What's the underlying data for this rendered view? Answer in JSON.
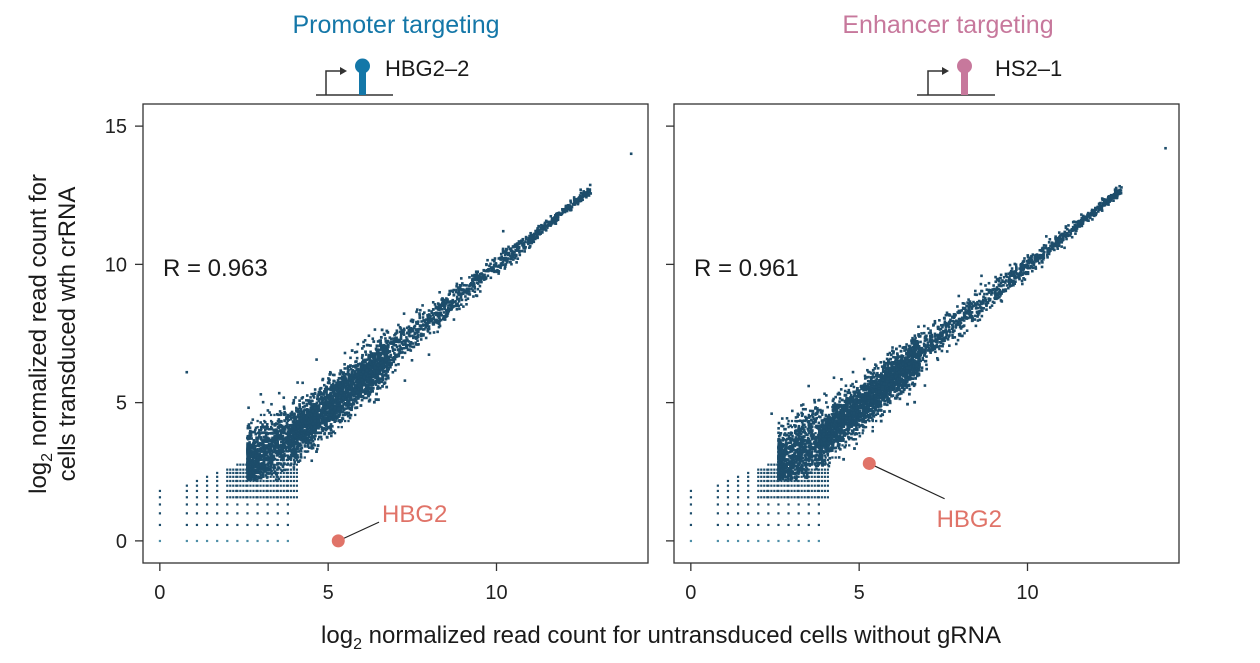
{
  "figure": {
    "x_axis_title_prefix": "log",
    "x_axis_title_sub": "2",
    "x_axis_title_rest": " normalized read count for untransduced cells without gRNA",
    "y_axis_title_line1_prefix": "log",
    "y_axis_title_line1_sub": "2",
    "y_axis_title_line1_rest": " normalized read count for",
    "y_axis_title_line2": "cells transduced wth crRNA"
  },
  "colors": {
    "promoter": "#1477a8",
    "enhancer": "#c7789c",
    "points": "#1d4d6b",
    "points_light": "#4e8fa8",
    "highlight": "#e07368",
    "axis": "#333333"
  },
  "chart_data": [
    {
      "type": "scatter",
      "panel": "promoter",
      "title": "Promoter targeting",
      "construct_label": "HBG2–2",
      "annotation": "R = 0.963",
      "correlation": 0.963,
      "xlim": [
        -0.5,
        14.5
      ],
      "ylim": [
        -0.8,
        15.8
      ],
      "x_ticks": [
        0,
        5,
        10
      ],
      "y_ticks": [
        0,
        5,
        10,
        15
      ],
      "x_tick_labels": [
        "0",
        "5",
        "10"
      ],
      "y_tick_labels": [
        "0",
        "5",
        "10",
        "15"
      ],
      "highlight": {
        "label": "HBG2",
        "x": 5.3,
        "y": 0.0,
        "label_x": 6.6,
        "label_y": 0.75
      },
      "outliers": [
        [
          0.8,
          6.1
        ],
        [
          3.0,
          5.3
        ],
        [
          3.1,
          4.1
        ],
        [
          14.0,
          14.0
        ],
        [
          12.5,
          12.7
        ],
        [
          12.2,
          12.3
        ],
        [
          10.2,
          11.2
        ]
      ]
    },
    {
      "type": "scatter",
      "panel": "enhancer",
      "title": "Enhancer targeting",
      "construct_label": "HS2–1",
      "annotation": "R = 0.961",
      "correlation": 0.961,
      "xlim": [
        -0.5,
        14.5
      ],
      "ylim": [
        -0.8,
        15.8
      ],
      "x_ticks": [
        0,
        5,
        10
      ],
      "y_ticks": [
        0,
        5,
        10,
        15
      ],
      "x_tick_labels": [
        "0",
        "5",
        "10"
      ],
      "y_tick_labels": [
        "0",
        "5",
        "10",
        "15"
      ],
      "highlight": {
        "label": "HBG2",
        "x": 5.3,
        "y": 2.8,
        "label_x": 7.3,
        "label_y": 0.8
      },
      "outliers": [
        [
          3.5,
          5.6
        ],
        [
          2.4,
          4.6
        ],
        [
          14.1,
          14.2
        ],
        [
          12.6,
          12.7
        ],
        [
          11.6,
          11.8
        ],
        [
          11.1,
          10.6
        ],
        [
          9.2,
          9.5
        ]
      ]
    }
  ]
}
